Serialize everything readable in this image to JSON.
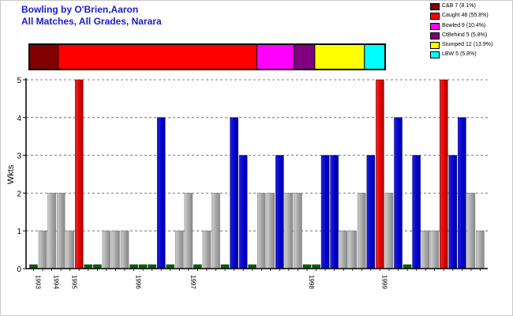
{
  "title_lines": [
    "Bowling by O'Brien,Aaron",
    "All Matches, All Grades, Narara"
  ],
  "legend": [
    {
      "label": "C&B 7 (8.1%)",
      "color": "#800000"
    },
    {
      "label": "Caught 48 (55.8%)",
      "color": "#ff0000"
    },
    {
      "label": "Bowled 9 (10.4%)",
      "color": "#ff00ff"
    },
    {
      "label": "CtBehind 5 (5.8%)",
      "color": "#800080"
    },
    {
      "label": "Stumped 12 (13.9%)",
      "color": "#ffff00"
    },
    {
      "label": "LBW 5 (5.8%)",
      "color": "#00ffff"
    }
  ],
  "chart_data": {
    "type": "bar",
    "title": "Bowling by O'Brien,Aaron",
    "subtitle": "All Matches, All Grades, Narara",
    "ylabel": "Wkts",
    "xlabel": "",
    "ylim": [
      0,
      5
    ],
    "yticks": [
      "0",
      "1",
      "2",
      "3",
      "4",
      "5"
    ],
    "grid": true,
    "year_labels": [
      {
        "label": "1993",
        "index": 0
      },
      {
        "label": "1994",
        "index": 2
      },
      {
        "label": "1995",
        "index": 4
      },
      {
        "label": "1996",
        "index": 11
      },
      {
        "label": "1997",
        "index": 17
      },
      {
        "label": "1998",
        "index": 30
      },
      {
        "label": "1999",
        "index": 38
      }
    ],
    "values": [
      0,
      1,
      2,
      2,
      1,
      5,
      0,
      0,
      1,
      1,
      1,
      0,
      0,
      0,
      4,
      0,
      1,
      2,
      0,
      1,
      2,
      0,
      4,
      3,
      0,
      2,
      2,
      3,
      2,
      2,
      0,
      0,
      3,
      3,
      1,
      1,
      2,
      3,
      5,
      2,
      4,
      0,
      3,
      1,
      1,
      5,
      3,
      4,
      2,
      1
    ],
    "series_colors": {
      "zero": "#006400",
      "grey": "#aaaaaa",
      "blue": "#0000cc",
      "red": "#dd0000"
    },
    "bar_color_keys": [
      "zero",
      "grey",
      "grey",
      "grey",
      "grey",
      "red",
      "zero",
      "zero",
      "grey",
      "grey",
      "grey",
      "zero",
      "zero",
      "zero",
      "blue",
      "zero",
      "grey",
      "grey",
      "zero",
      "grey",
      "grey",
      "zero",
      "blue",
      "blue",
      "zero",
      "grey",
      "grey",
      "blue",
      "grey",
      "grey",
      "zero",
      "zero",
      "blue",
      "blue",
      "grey",
      "grey",
      "grey",
      "blue",
      "red",
      "grey",
      "blue",
      "zero",
      "blue",
      "grey",
      "grey",
      "red",
      "blue",
      "blue",
      "grey",
      "grey"
    ],
    "dismissal_breakdown": [
      {
        "type": "C&B",
        "count": 7,
        "percent": 8.1,
        "color": "#800000"
      },
      {
        "type": "Caught",
        "count": 48,
        "percent": 55.8,
        "color": "#ff0000"
      },
      {
        "type": "Bowled",
        "count": 9,
        "percent": 10.4,
        "color": "#ff00ff"
      },
      {
        "type": "CtBehind",
        "count": 5,
        "percent": 5.8,
        "color": "#800080"
      },
      {
        "type": "Stumped",
        "count": 12,
        "percent": 13.9,
        "color": "#ffff00"
      },
      {
        "type": "LBW",
        "count": 5,
        "percent": 5.8,
        "color": "#00ffff"
      }
    ]
  }
}
